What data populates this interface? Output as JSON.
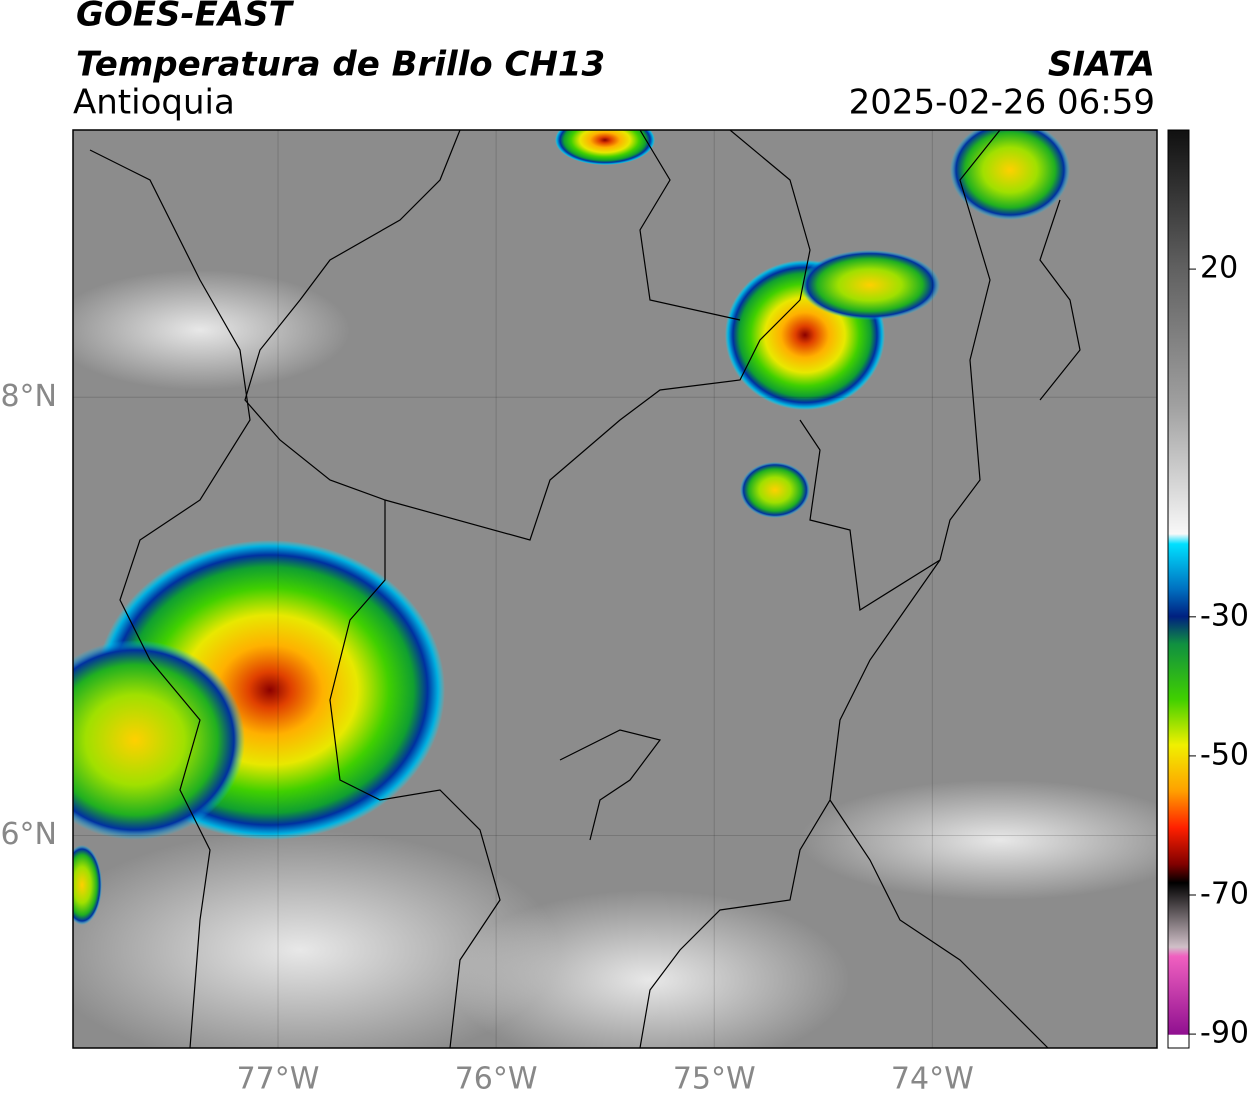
{
  "chart_data": {
    "type": "map",
    "title": "GOES-EAST",
    "subtitle": "Temperatura de Brillo CH13",
    "region": "Antioquia",
    "source": "SIATA",
    "timestamp": "2025-02-26 06:59",
    "xlim": [
      -77.94,
      -72.97
    ],
    "ylim": [
      5.03,
      9.22
    ],
    "xticks": [
      {
        "value": -77,
        "label": "77°W"
      },
      {
        "value": -76,
        "label": "76°W"
      },
      {
        "value": -75,
        "label": "75°W"
      },
      {
        "value": -74,
        "label": "74°W"
      }
    ],
    "yticks": [
      {
        "value": 6,
        "label": "6°N"
      },
      {
        "value": 8,
        "label": "8°N"
      }
    ],
    "grid": true,
    "colorbar": {
      "clim": [
        -92,
        40
      ],
      "ticks": [
        20,
        -30,
        -50,
        -70,
        -90
      ]
    }
  }
}
